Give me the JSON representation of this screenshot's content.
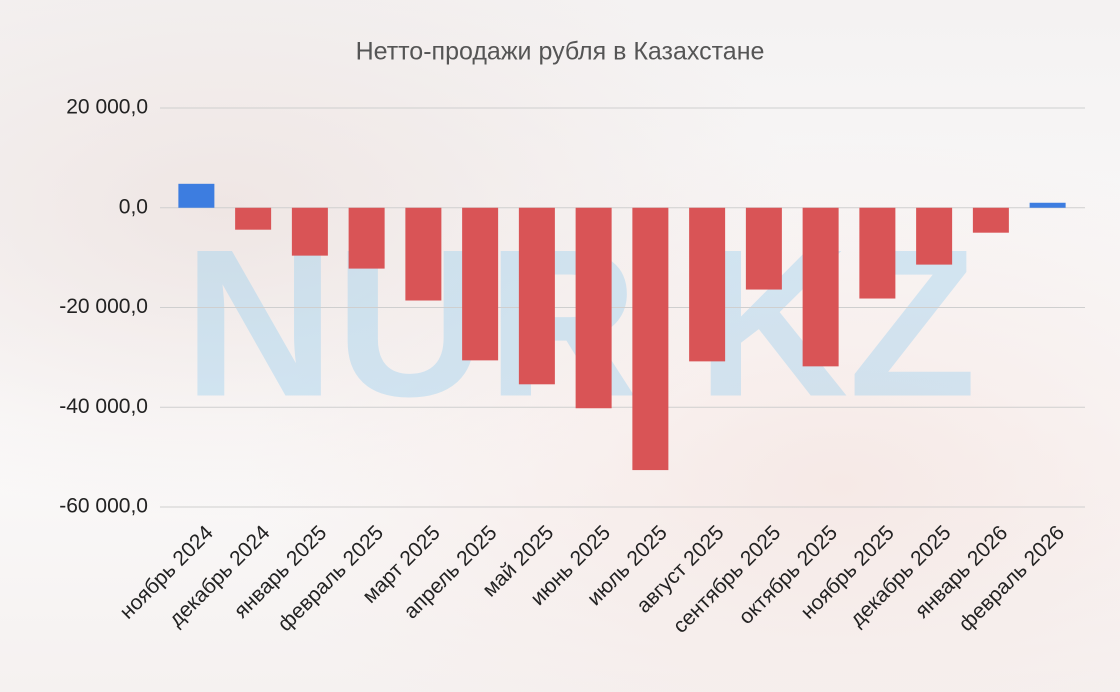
{
  "chart_data": {
    "type": "bar",
    "title": "Нетто-продажи рубля в Казахстане",
    "watermark": "NUR KZ",
    "categories": [
      "ноябрь 2024",
      "декабрь 2024",
      "январь 2025",
      "февраль 2025",
      "март 2025",
      "апрель 2025",
      "май 2025",
      "июнь 2025",
      "июль 2025",
      "август 2025",
      "сентябрь 2025",
      "октябрь 2025",
      "ноябрь 2025",
      "декабрь 2025",
      "январь 2026",
      "февраль 2026"
    ],
    "values": [
      4800,
      -4400,
      -9600,
      -12200,
      -18600,
      -30600,
      -35400,
      -40200,
      -52600,
      -30800,
      -16400,
      -31800,
      -18200,
      -11400,
      -5000,
      1000
    ],
    "positive_color": "#3d7de0",
    "negative_color": "#d95456",
    "ylim": [
      -60000,
      20000
    ],
    "yticks": [
      {
        "value": -60000,
        "label": "-60 000,0"
      },
      {
        "value": -40000,
        "label": "-40 000,0"
      },
      {
        "value": -20000,
        "label": "-20 000,0"
      },
      {
        "value": 0,
        "label": "0,0"
      },
      {
        "value": 20000,
        "label": "20 000,0"
      }
    ],
    "grid": true
  }
}
